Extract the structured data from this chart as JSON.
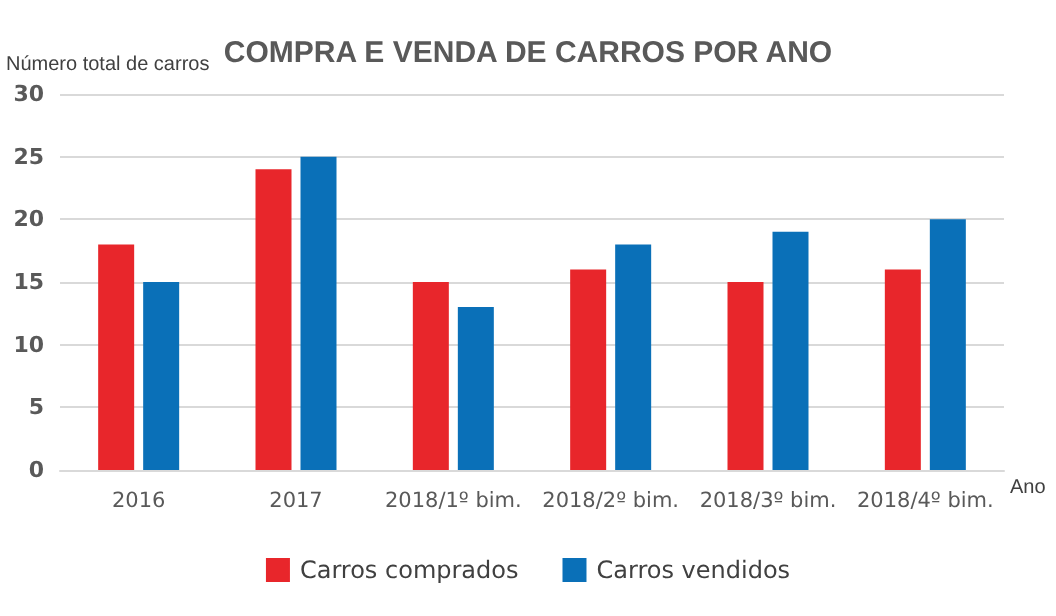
{
  "chart_data": {
    "type": "bar",
    "title": "COMPRA E VENDA DE CARROS POR ANO",
    "xlabel": "Ano",
    "ylabel": "Número total de carros",
    "categories": [
      "2016",
      "2017",
      "2018/1º bim.",
      "2018/2º bim.",
      "2018/3º bim.",
      "2018/4º bim."
    ],
    "series": [
      {
        "name": "Carros comprados",
        "color": "#e8262b",
        "values": [
          18,
          24,
          15,
          16,
          15,
          16
        ]
      },
      {
        "name": "Carros vendidos",
        "color": "#0a70b8",
        "values": [
          15,
          25,
          13,
          18,
          19,
          20
        ]
      }
    ],
    "ylim": [
      0,
      30
    ],
    "yticks": [
      0,
      5,
      10,
      15,
      20,
      25,
      30
    ],
    "grid": "y",
    "legend": "bottom"
  }
}
